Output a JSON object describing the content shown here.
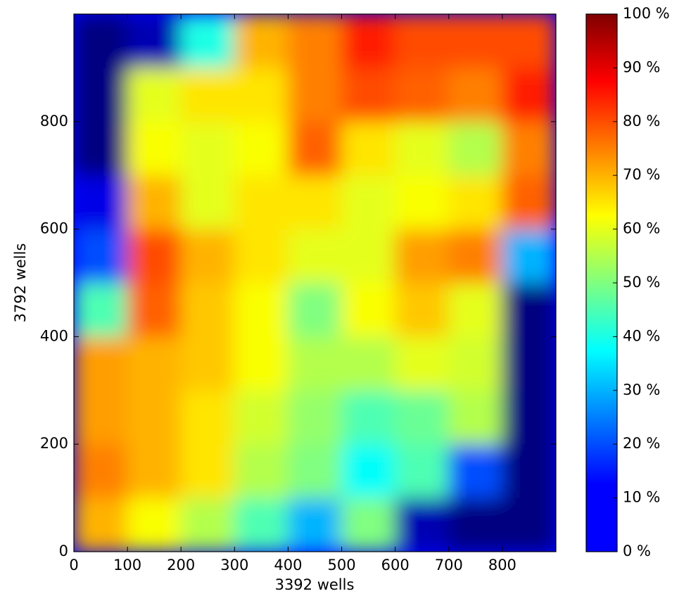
{
  "chart_data": {
    "type": "heatmap",
    "xlabel": "3392 wells",
    "ylabel": "3792 wells",
    "xlim": [
      0,
      900
    ],
    "ylim": [
      0,
      1000
    ],
    "xticks": [
      0,
      100,
      200,
      300,
      400,
      500,
      600,
      700,
      800
    ],
    "yticks": [
      0,
      200,
      400,
      600,
      800
    ],
    "clim": [
      0,
      100
    ],
    "cticks": [
      {
        "value": 0,
        "label": "0 %"
      },
      {
        "value": 10,
        "label": "10 %"
      },
      {
        "value": 20,
        "label": "20 %"
      },
      {
        "value": 30,
        "label": "30 %"
      },
      {
        "value": 40,
        "label": "40 %"
      },
      {
        "value": 50,
        "label": "50 %"
      },
      {
        "value": 60,
        "label": "60 %"
      },
      {
        "value": 70,
        "label": "70 %"
      },
      {
        "value": 80,
        "label": "80 %"
      },
      {
        "value": 90,
        "label": "90 %"
      },
      {
        "value": 100,
        "label": "100 %"
      }
    ],
    "colormap": "jet",
    "z": [
      [
        70,
        62,
        55,
        45,
        30,
        50,
        5,
        0,
        0
      ],
      [
        75,
        70,
        65,
        55,
        50,
        38,
        45,
        20,
        0
      ],
      [
        72,
        70,
        65,
        58,
        52,
        45,
        48,
        55,
        0
      ],
      [
        72,
        70,
        68,
        62,
        55,
        55,
        60,
        58,
        0
      ],
      [
        45,
        78,
        68,
        62,
        50,
        62,
        68,
        60,
        0
      ],
      [
        20,
        80,
        70,
        65,
        60,
        60,
        72,
        75,
        30
      ],
      [
        10,
        70,
        60,
        65,
        65,
        60,
        62,
        65,
        78
      ],
      [
        0,
        62,
        60,
        62,
        78,
        65,
        60,
        55,
        75
      ],
      [
        0,
        60,
        65,
        65,
        75,
        80,
        78,
        75,
        85
      ],
      [
        0,
        5,
        40,
        70,
        75,
        85,
        80,
        80,
        80
      ]
    ]
  }
}
